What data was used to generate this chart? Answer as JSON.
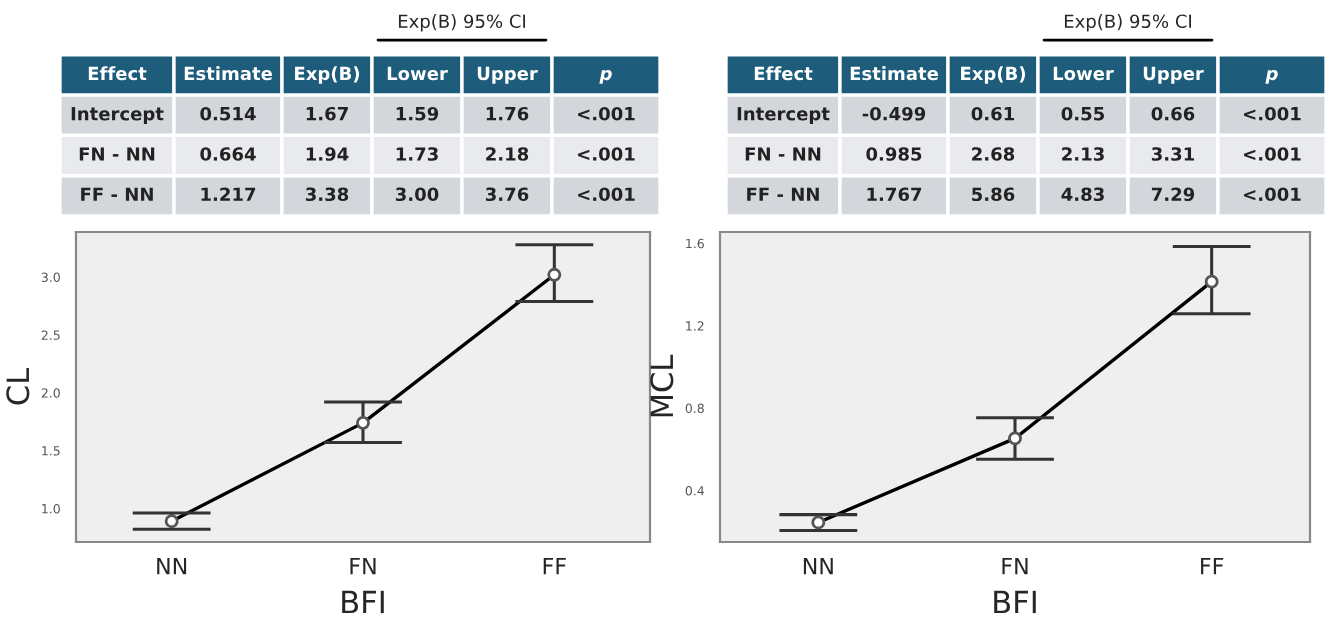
{
  "chart_data": [
    {
      "type": "other",
      "annotations": [
        "Exp(B) 95% CI",
        "Effect",
        "Estimate",
        "Exp(B)",
        "Lower",
        "Upper",
        "p",
        "Intercept",
        "0.514",
        "1.67",
        "1.59",
        "1.76",
        "<.001",
        "FN - NN",
        "0.664",
        "1.94",
        "1.73",
        "2.18",
        "<.001",
        "FF - NN",
        "1.217",
        "3.38",
        "3.00",
        "3.76",
        "<.001"
      ]
    },
    {
      "type": "other",
      "annotations": [
        "Exp(B) 95% CI",
        "Effect",
        "Estimate",
        "Exp(B)",
        "Lower",
        "Upper",
        "p",
        "Intercept",
        "-0.499",
        "0.61",
        "0.55",
        "0.66",
        "<.001",
        "FN - NN",
        "0.985",
        "2.68",
        "2.13",
        "3.31",
        "<.001",
        "FF - NN",
        "1.767",
        "5.86",
        "4.83",
        "7.29",
        "<.001"
      ]
    },
    {
      "type": "line",
      "xlabel": "BFI",
      "ylabel": "CL",
      "categories": [
        "NN",
        "FN",
        "FF"
      ],
      "series": [
        {
          "color": "#000000",
          "values": [
            0.89,
            1.74,
            3.02
          ],
          "errors": [
            [
              0.82,
              0.96
            ],
            [
              1.57,
              1.92
            ],
            [
              2.79,
              3.28
            ]
          ]
        }
      ],
      "ylim": [
        0.71,
        3.39
      ],
      "yticks": [
        {
          "value": 1.0,
          "label": "1.0"
        },
        {
          "value": 1.5,
          "label": "1.5"
        },
        {
          "value": 2.0,
          "label": "2.0"
        },
        {
          "value": 2.5,
          "label": "2.5"
        },
        {
          "value": 3.0,
          "label": "3.0"
        }
      ],
      "marker": "circle",
      "line_style": "solid",
      "grid": false,
      "legend": false
    },
    {
      "type": "line",
      "xlabel": "BFI",
      "ylabel": "MCL",
      "categories": [
        "NN",
        "FN",
        "FF"
      ],
      "series": [
        {
          "color": "#000000",
          "values": [
            0.245,
            0.653,
            1.414
          ],
          "errors": [
            [
              0.206,
              0.283
            ],
            [
              0.552,
              0.753
            ],
            [
              1.258,
              1.585
            ]
          ]
        }
      ],
      "ylim": [
        0.15,
        1.655
      ],
      "yticks": [
        {
          "value": 0.4,
          "label": "0.4"
        },
        {
          "value": 0.8,
          "label": "0.8"
        },
        {
          "value": 1.2,
          "label": "1.2"
        },
        {
          "value": 1.6,
          "label": "1.6"
        }
      ],
      "marker": "circle",
      "line_style": "solid",
      "grid": false,
      "legend": false
    }
  ]
}
